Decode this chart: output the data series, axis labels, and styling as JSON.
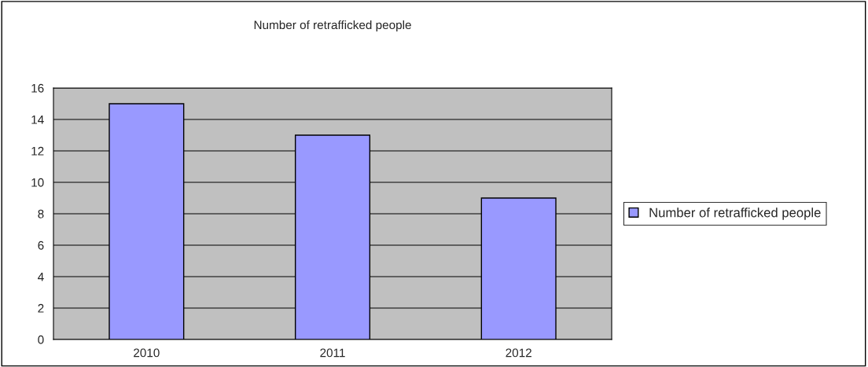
{
  "chart_data": {
    "type": "bar",
    "title": "Number of retrafficked people",
    "categories": [
      "2010",
      "2011",
      "2012"
    ],
    "series": [
      {
        "name": "Number of retrafficked people",
        "color": "#9999ff",
        "values": [
          15,
          13,
          9
        ]
      }
    ],
    "ylim": [
      0,
      16
    ],
    "yticks": [
      0,
      2,
      4,
      6,
      8,
      10,
      12,
      14,
      16
    ],
    "grid": "y",
    "legend": "right"
  }
}
